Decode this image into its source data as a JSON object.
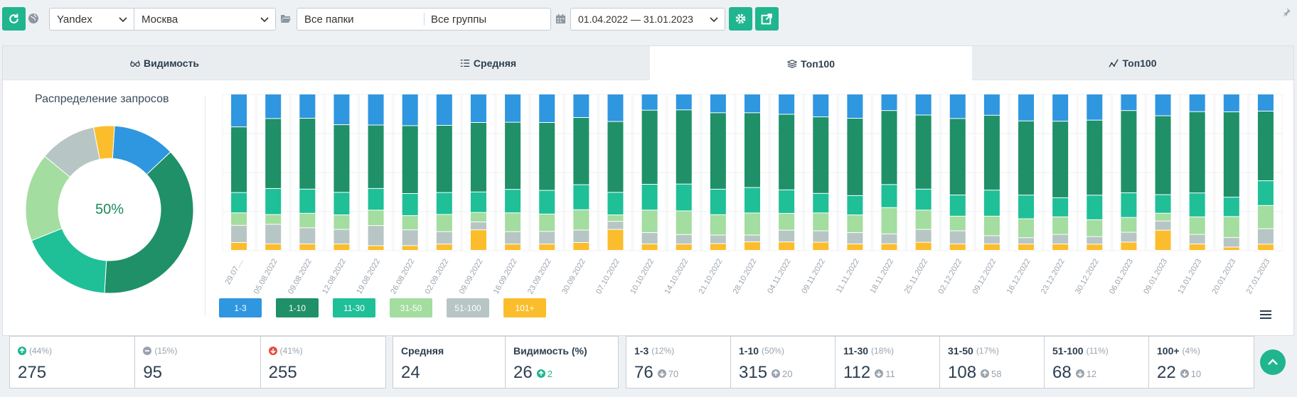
{
  "toolbar": {
    "engine": "Yandex",
    "region": "Москва",
    "folders": "Все папки",
    "groups": "Все группы",
    "date_range": "01.04.2022 — 31.01.2023"
  },
  "tabs": [
    {
      "label": "Видимость",
      "icon": "glasses-icon"
    },
    {
      "label": "Средняя",
      "icon": "list-icon"
    },
    {
      "label": "Топ100",
      "icon": "layers-icon"
    },
    {
      "label": "Топ100",
      "icon": "chart-line-icon"
    }
  ],
  "donut": {
    "title": "Распределение запросов",
    "center_label": "50%",
    "segments": [
      {
        "name": "1-3",
        "value": 12,
        "color": "#2f96e0"
      },
      {
        "name": "1-10",
        "value": 38,
        "color": "#1f9068"
      },
      {
        "name": "11-30",
        "value": 18,
        "color": "#1fbf98"
      },
      {
        "name": "31-50",
        "value": 17,
        "color": "#a3dd9f"
      },
      {
        "name": "51-100",
        "value": 11,
        "color": "#b7c6c4"
      },
      {
        "name": "101+",
        "value": 4,
        "color": "#fbbd2c"
      }
    ]
  },
  "chart_data": {
    "type": "bar",
    "stacked": true,
    "normalized": true,
    "categories": [
      "29.07....",
      "05.08.2022",
      "09.08.2022",
      "12.08.2022",
      "19.08.2022",
      "26.08.2022",
      "02.09.2022",
      "09.09.2022",
      "16.09.2022",
      "23.09.2022",
      "30.09.2022",
      "07.10.2022",
      "10.10.2022",
      "14.10.2022",
      "21.10.2022",
      "28.10.2022",
      "04.11.2022",
      "09.11.2022",
      "11.11.2022",
      "18.11.2022",
      "25.11.2022",
      "02.12.2022",
      "09.12.2022",
      "16.12.2022",
      "23.12.2022",
      "30.12.2022",
      "06.01.2023",
      "09.01.2023",
      "13.01.2023",
      "20.01.2023",
      "27.01.2023"
    ],
    "series": [
      {
        "name": "1-3",
        "color": "#2f96e0",
        "values": [
          21,
          15,
          15,
          19,
          20,
          20,
          20,
          18,
          18,
          18,
          15,
          17,
          10,
          10,
          11,
          11,
          12,
          14,
          15,
          10,
          13,
          15,
          13,
          17,
          17,
          17,
          10,
          14,
          11,
          11,
          11
        ]
      },
      {
        "name": "1-10",
        "color": "#1f9068",
        "values": [
          42,
          43,
          44,
          42,
          41,
          43,
          43,
          44,
          43,
          43,
          43,
          44,
          46,
          47,
          45,
          44,
          45,
          47,
          48,
          45,
          46,
          47,
          46,
          47,
          48,
          49,
          50,
          51,
          51,
          53,
          45
        ]
      },
      {
        "name": "11-30",
        "color": "#1fbf98",
        "values": [
          13,
          16,
          15,
          14,
          14,
          14,
          14,
          13,
          15,
          15,
          16,
          14,
          16,
          17,
          15,
          15,
          14,
          12,
          12,
          14,
          13,
          13,
          16,
          15,
          12,
          16,
          15,
          12,
          15,
          12,
          16
        ]
      },
      {
        "name": "31-50",
        "color": "#a3dd9f",
        "values": [
          8,
          6,
          9,
          9,
          10,
          9,
          11,
          6,
          12,
          11,
          13,
          4,
          14,
          15,
          12,
          13,
          10,
          11,
          11,
          16,
          12,
          9,
          12,
          12,
          11,
          11,
          9,
          5,
          11,
          13,
          15
        ]
      },
      {
        "name": "51-100",
        "color": "#b7c6c4",
        "values": [
          11,
          12,
          10,
          9,
          13,
          10,
          8,
          5,
          8,
          8,
          8,
          5,
          7,
          6,
          5,
          4,
          7,
          7,
          7,
          6,
          8,
          8,
          5,
          4,
          6,
          5,
          6,
          6,
          6,
          6,
          10
        ]
      },
      {
        "name": "101+",
        "color": "#fbbd2c",
        "values": [
          5,
          4,
          4,
          4,
          3,
          3,
          4,
          13,
          4,
          4,
          5,
          13,
          4,
          4,
          4,
          5,
          5,
          5,
          4,
          4,
          5,
          4,
          4,
          4,
          4,
          4,
          5,
          13,
          4,
          2,
          4
        ]
      }
    ]
  },
  "legend": [
    "1-3",
    "1-10",
    "11-30",
    "31-50",
    "51-100",
    "101+"
  ],
  "stats_a": [
    {
      "pct": "(44%)",
      "value": "275",
      "icon": "arrow-up-circle-icon",
      "color": "#1fb58f"
    },
    {
      "pct": "(15%)",
      "value": "95",
      "icon": "minus-circle-icon",
      "color": "#9aa3ad"
    },
    {
      "pct": "(41%)",
      "value": "255",
      "icon": "arrow-down-circle-icon",
      "color": "#e74c3c"
    }
  ],
  "stats_b": [
    {
      "label": "Средняя",
      "value": "24",
      "delta": ""
    },
    {
      "label": "Видимость (%)",
      "value": "26",
      "delta": "2"
    }
  ],
  "stats_c": [
    {
      "label": "1-3",
      "pct": "(12%)",
      "value": "76",
      "delta": "70",
      "dir": "down"
    },
    {
      "label": "1-10",
      "pct": "(50%)",
      "value": "315",
      "delta": "20",
      "dir": "up"
    },
    {
      "label": "11-30",
      "pct": "(18%)",
      "value": "112",
      "delta": "11",
      "dir": "down"
    },
    {
      "label": "31-50",
      "pct": "(17%)",
      "value": "108",
      "delta": "58",
      "dir": "up"
    },
    {
      "label": "51-100",
      "pct": "(11%)",
      "value": "68",
      "delta": "12",
      "dir": "down"
    },
    {
      "label": "100+",
      "pct": "(4%)",
      "value": "22",
      "delta": "10",
      "dir": "down"
    }
  ]
}
